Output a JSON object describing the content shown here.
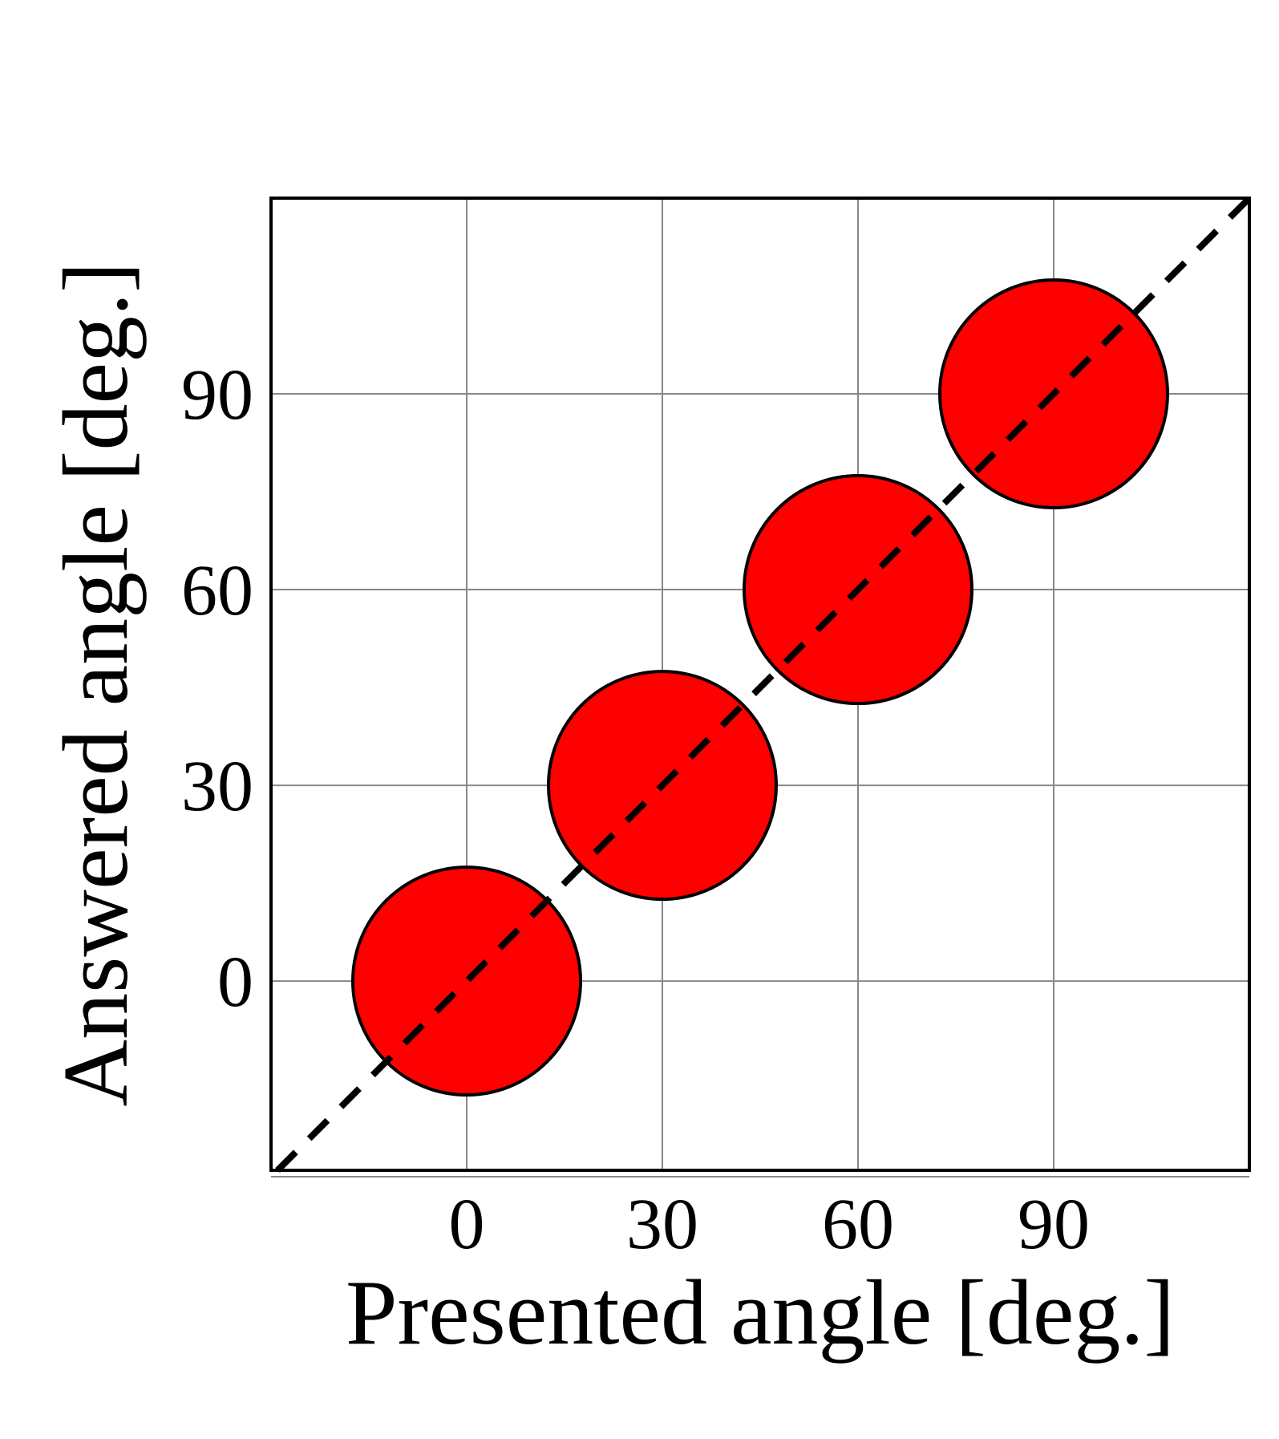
{
  "chart_data": {
    "type": "scatter",
    "x_label": "Presented angle [deg.]",
    "y_label": "Answered angle [deg.]",
    "x": [
      0,
      30,
      60,
      90
    ],
    "series": [
      {
        "color": "#ff0000",
        "values": [
          0,
          30,
          60,
          90
        ]
      }
    ],
    "xlim": [
      -30,
      120
    ],
    "ylim": [
      -29,
      120
    ],
    "xticks": [
      0,
      30,
      60,
      90
    ],
    "yticks": [
      0,
      30,
      60,
      90
    ],
    "grid": true
  }
}
